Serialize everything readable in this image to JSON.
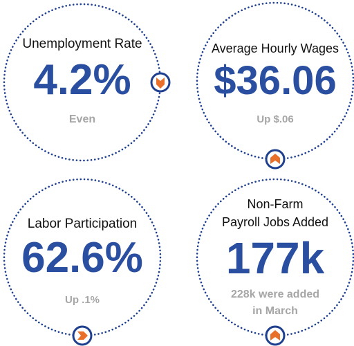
{
  "colors": {
    "value": "#2b4fa0",
    "ring": "#1f3f8f",
    "badge_fill": "#e8702a",
    "badge_border": "#1f3f8f",
    "subtext": "#a6a6a6"
  },
  "stats": [
    {
      "label": "Unemployment Rate",
      "value": "4.2%",
      "change": "Even",
      "badge_icon": "chevron-down-icon"
    },
    {
      "label": "Average Hourly Wages",
      "value": "$36.06",
      "change": "Up $.06",
      "badge_icon": "chevron-up-icon"
    },
    {
      "label": "Labor Participation",
      "value": "62.6%",
      "change": "Up .1%",
      "badge_icon": "chevron-right-icon"
    },
    {
      "label_line1": "Non-Farm",
      "label_line2": "Payroll Jobs Added",
      "value": "177k",
      "change_line1": "228k were added",
      "change_line2": "in March",
      "badge_icon": "chevron-up-icon"
    }
  ]
}
